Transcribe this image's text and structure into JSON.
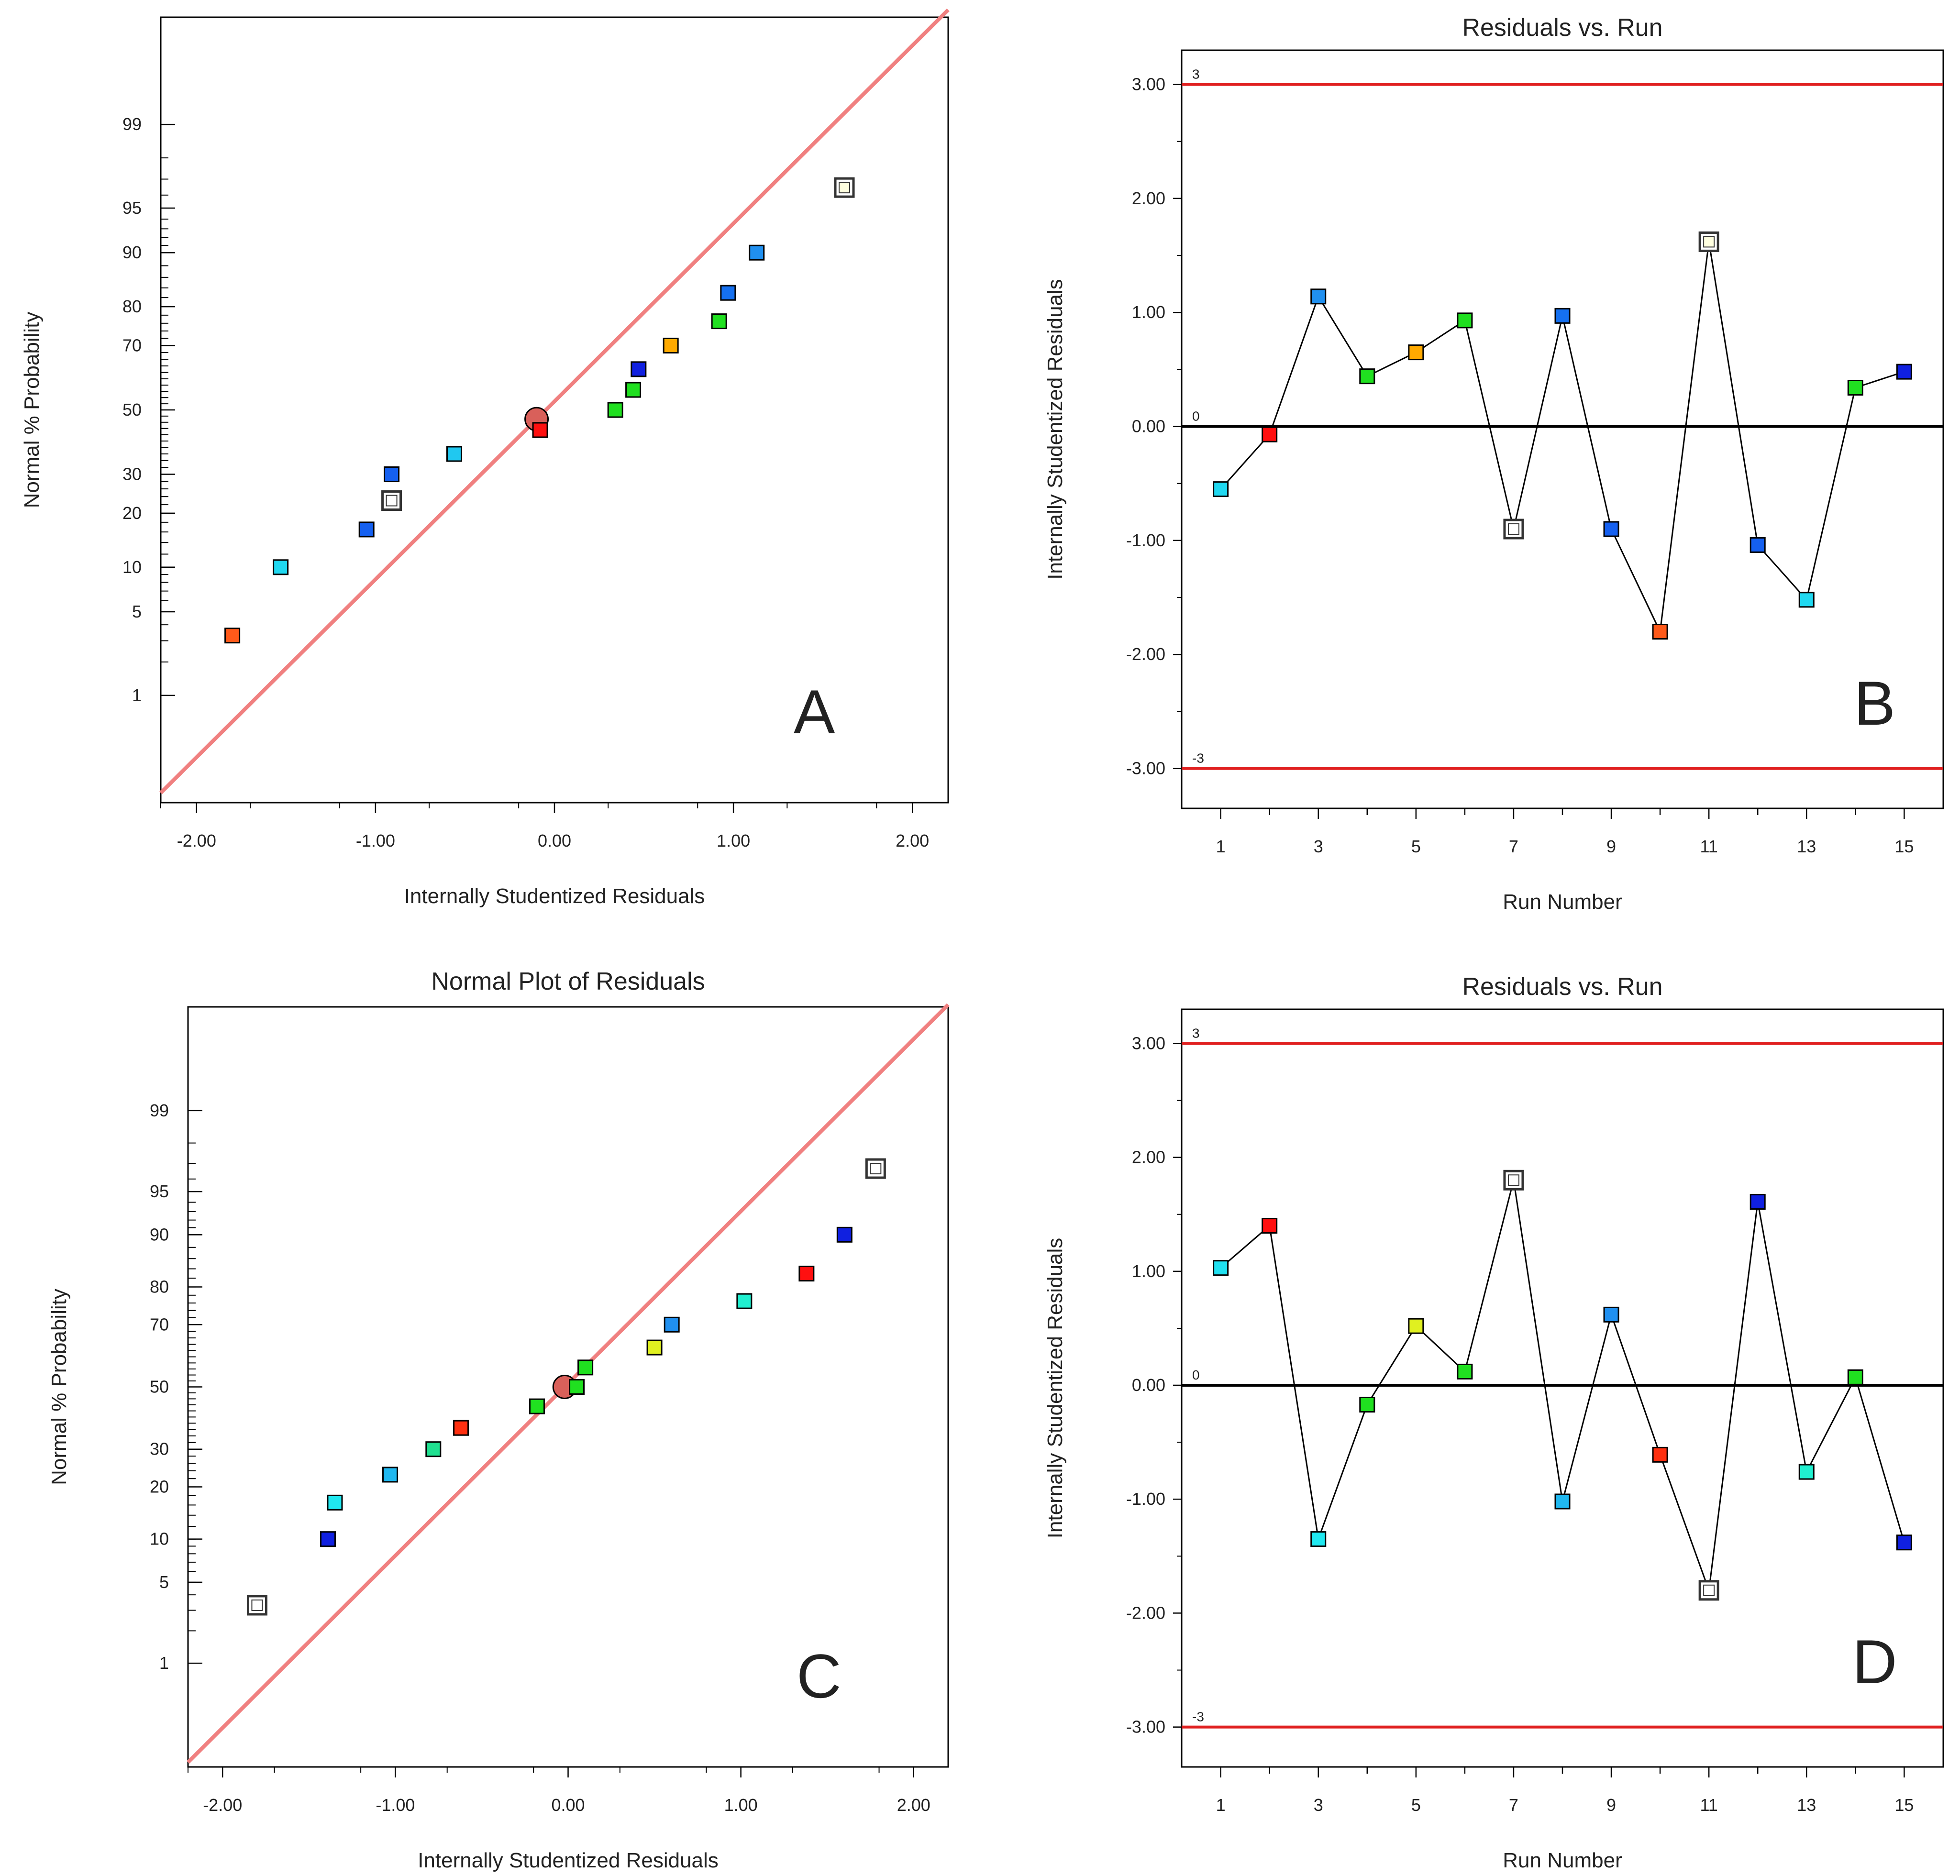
{
  "chart_data": [
    {
      "id": "A",
      "type": "scatter",
      "kind": "normal_probability",
      "title": "",
      "panel_label": "A",
      "xlabel": "Internally Studentized Residuals",
      "ylabel": "Normal % Probability",
      "xlim": [
        -2.2,
        2.2
      ],
      "x_ticks": [
        -2,
        -1,
        0,
        1,
        2
      ],
      "x_tick_labels": [
        "-2.00",
        "-1.00",
        "0.00",
        "1.00",
        "2.00"
      ],
      "y_tick_values": [
        1,
        5,
        10,
        20,
        30,
        50,
        70,
        80,
        90,
        95,
        99
      ],
      "y_tick_labels": [
        "1",
        "5",
        "10",
        "20",
        "30",
        "50",
        "70",
        "80",
        "90",
        "95",
        "99"
      ],
      "fit_line": {
        "x": [
          -2.2,
          2.2
        ],
        "color": "#f08080"
      },
      "center_marker": {
        "x": -0.1,
        "prob": 47,
        "color": "#d9605a"
      },
      "points": [
        {
          "x": -1.8,
          "prob": 3.3,
          "color": "#ff5a1a"
        },
        {
          "x": -1.53,
          "prob": 10,
          "color": "#20d8f0"
        },
        {
          "x": -1.05,
          "prob": 16.5,
          "color": "#1560f0"
        },
        {
          "x": -0.91,
          "prob": 23,
          "color": "#ffffff",
          "hollow": true
        },
        {
          "x": -0.91,
          "prob": 30,
          "color": "#1560f0"
        },
        {
          "x": -0.56,
          "prob": 36,
          "color": "#20c8f0"
        },
        {
          "x": -0.08,
          "prob": 43.5,
          "color": "#ff1010"
        },
        {
          "x": 0.34,
          "prob": 50,
          "color": "#20e020"
        },
        {
          "x": 0.44,
          "prob": 56.5,
          "color": "#20e020"
        },
        {
          "x": 0.47,
          "prob": 63,
          "color": "#1020e0"
        },
        {
          "x": 0.65,
          "prob": 70,
          "color": "#ffaa00"
        },
        {
          "x": 0.92,
          "prob": 76.5,
          "color": "#20e020"
        },
        {
          "x": 0.97,
          "prob": 83,
          "color": "#1570f0"
        },
        {
          "x": 1.13,
          "prob": 90,
          "color": "#2090f0"
        },
        {
          "x": 1.62,
          "prob": 96.5,
          "color": "#ffffe0",
          "hollow": true
        }
      ]
    },
    {
      "id": "B",
      "type": "line",
      "kind": "residuals_vs_run",
      "title": "Residuals vs. Run",
      "panel_label": "B",
      "xlabel": "Run Number",
      "ylabel": "Internally Studentized Residuals",
      "xlim": [
        0.2,
        15.8
      ],
      "ylim": [
        -3.35,
        3.3
      ],
      "x_ticks": [
        1,
        3,
        5,
        7,
        9,
        11,
        13,
        15
      ],
      "x_tick_labels": [
        "1",
        "3",
        "5",
        "7",
        "9",
        "11",
        "13",
        "15"
      ],
      "y_ticks": [
        -3,
        -2,
        -1,
        0,
        1,
        2,
        3
      ],
      "y_tick_labels": [
        "-3.00",
        "-2.00",
        "-1.00",
        "0.00",
        "1.00",
        "2.00",
        "3.00"
      ],
      "limit_lines": [
        {
          "y": 3,
          "label": "3"
        },
        {
          "y": -3,
          "label": "-3"
        }
      ],
      "zero_line_label": "0",
      "limit_color": "#e02020",
      "points": [
        {
          "x": 1,
          "y": -0.55,
          "color": "#20d8f0"
        },
        {
          "x": 2,
          "y": -0.07,
          "color": "#ff1010"
        },
        {
          "x": 3,
          "y": 1.14,
          "color": "#2090f0"
        },
        {
          "x": 4,
          "y": 0.44,
          "color": "#20e020"
        },
        {
          "x": 5,
          "y": 0.65,
          "color": "#ffaa00"
        },
        {
          "x": 6,
          "y": 0.93,
          "color": "#20e020"
        },
        {
          "x": 7,
          "y": -0.9,
          "color": "#ffffff",
          "hollow": true
        },
        {
          "x": 8,
          "y": 0.97,
          "color": "#1570f0"
        },
        {
          "x": 9,
          "y": -0.9,
          "color": "#1560f0"
        },
        {
          "x": 10,
          "y": -1.8,
          "color": "#ff5a1a"
        },
        {
          "x": 11,
          "y": 1.62,
          "color": "#ffffe0",
          "hollow": true
        },
        {
          "x": 12,
          "y": -1.04,
          "color": "#1560f0"
        },
        {
          "x": 13,
          "y": -1.52,
          "color": "#20d8f0"
        },
        {
          "x": 14,
          "y": 0.34,
          "color": "#20e020"
        },
        {
          "x": 15,
          "y": 0.48,
          "color": "#1020e0"
        }
      ]
    },
    {
      "id": "C",
      "type": "scatter",
      "kind": "normal_probability",
      "title": "Normal Plot of Residuals",
      "panel_label": "C",
      "xlabel": "Internally Studentized Residuals",
      "ylabel": "Normal % Probability",
      "xlim": [
        -2.2,
        2.2
      ],
      "x_ticks": [
        -2,
        -1,
        0,
        1,
        2
      ],
      "x_tick_labels": [
        "-2.00",
        "-1.00",
        "0.00",
        "1.00",
        "2.00"
      ],
      "y_tick_values": [
        1,
        5,
        10,
        20,
        30,
        50,
        70,
        80,
        90,
        95,
        99
      ],
      "y_tick_labels": [
        "1",
        "5",
        "10",
        "20",
        "30",
        "50",
        "70",
        "80",
        "90",
        "95",
        "99"
      ],
      "fit_line": {
        "x": [
          -2.2,
          2.2
        ],
        "color": "#f08080"
      },
      "center_marker": {
        "x": -0.02,
        "prob": 50,
        "color": "#d9605a"
      },
      "points": [
        {
          "x": -1.8,
          "prob": 3.3,
          "color": "#ffffff",
          "hollow": true
        },
        {
          "x": -1.39,
          "prob": 10,
          "color": "#1020e0"
        },
        {
          "x": -1.35,
          "prob": 16.5,
          "color": "#20e8f0"
        },
        {
          "x": -1.03,
          "prob": 23,
          "color": "#20b8f0"
        },
        {
          "x": -0.78,
          "prob": 30,
          "color": "#20e090"
        },
        {
          "x": -0.62,
          "prob": 36.5,
          "color": "#ff3010"
        },
        {
          "x": -0.18,
          "prob": 43.5,
          "color": "#20e020"
        },
        {
          "x": 0.05,
          "prob": 50,
          "color": "#20e020"
        },
        {
          "x": 0.1,
          "prob": 56.5,
          "color": "#20e020"
        },
        {
          "x": 0.5,
          "prob": 63,
          "color": "#e0f020"
        },
        {
          "x": 0.6,
          "prob": 70,
          "color": "#2090f0"
        },
        {
          "x": 1.02,
          "prob": 76.5,
          "color": "#20f0d0"
        },
        {
          "x": 1.38,
          "prob": 83,
          "color": "#ff1010"
        },
        {
          "x": 1.6,
          "prob": 90,
          "color": "#1020e0"
        },
        {
          "x": 1.78,
          "prob": 96.7,
          "color": "#ffffff",
          "hollow": true
        }
      ]
    },
    {
      "id": "D",
      "type": "line",
      "kind": "residuals_vs_run",
      "title": "Residuals vs. Run",
      "panel_label": "D",
      "xlabel": "Run Number",
      "ylabel": "Internally Studentized Residuals",
      "xlim": [
        0.2,
        15.8
      ],
      "ylim": [
        -3.35,
        3.3
      ],
      "x_ticks": [
        1,
        3,
        5,
        7,
        9,
        11,
        13,
        15
      ],
      "x_tick_labels": [
        "1",
        "3",
        "5",
        "7",
        "9",
        "11",
        "13",
        "15"
      ],
      "y_ticks": [
        -3,
        -2,
        -1,
        0,
        1,
        2,
        3
      ],
      "y_tick_labels": [
        "-3.00",
        "-2.00",
        "-1.00",
        "0.00",
        "1.00",
        "2.00",
        "3.00"
      ],
      "limit_lines": [
        {
          "y": 3,
          "label": "3"
        },
        {
          "y": -3,
          "label": "-3"
        }
      ],
      "zero_line_label": "0",
      "limit_color": "#e02020",
      "points": [
        {
          "x": 1,
          "y": 1.03,
          "color": "#20e0f0"
        },
        {
          "x": 2,
          "y": 1.4,
          "color": "#ff1010"
        },
        {
          "x": 3,
          "y": -1.35,
          "color": "#20e8f0"
        },
        {
          "x": 4,
          "y": -0.17,
          "color": "#20e020"
        },
        {
          "x": 5,
          "y": 0.52,
          "color": "#e0f020"
        },
        {
          "x": 6,
          "y": 0.12,
          "color": "#20e020"
        },
        {
          "x": 7,
          "y": 1.8,
          "color": "#ffffff",
          "hollow": true
        },
        {
          "x": 8,
          "y": -1.02,
          "color": "#20b8f0"
        },
        {
          "x": 9,
          "y": 0.62,
          "color": "#2090f0"
        },
        {
          "x": 10,
          "y": -0.61,
          "color": "#ff3010"
        },
        {
          "x": 11,
          "y": -1.8,
          "color": "#ffffff",
          "hollow": true
        },
        {
          "x": 12,
          "y": 1.61,
          "color": "#1020e0"
        },
        {
          "x": 13,
          "y": -0.76,
          "color": "#20f0d0"
        },
        {
          "x": 14,
          "y": 0.07,
          "color": "#20e020"
        },
        {
          "x": 15,
          "y": -1.38,
          "color": "#1020e0"
        }
      ]
    }
  ]
}
